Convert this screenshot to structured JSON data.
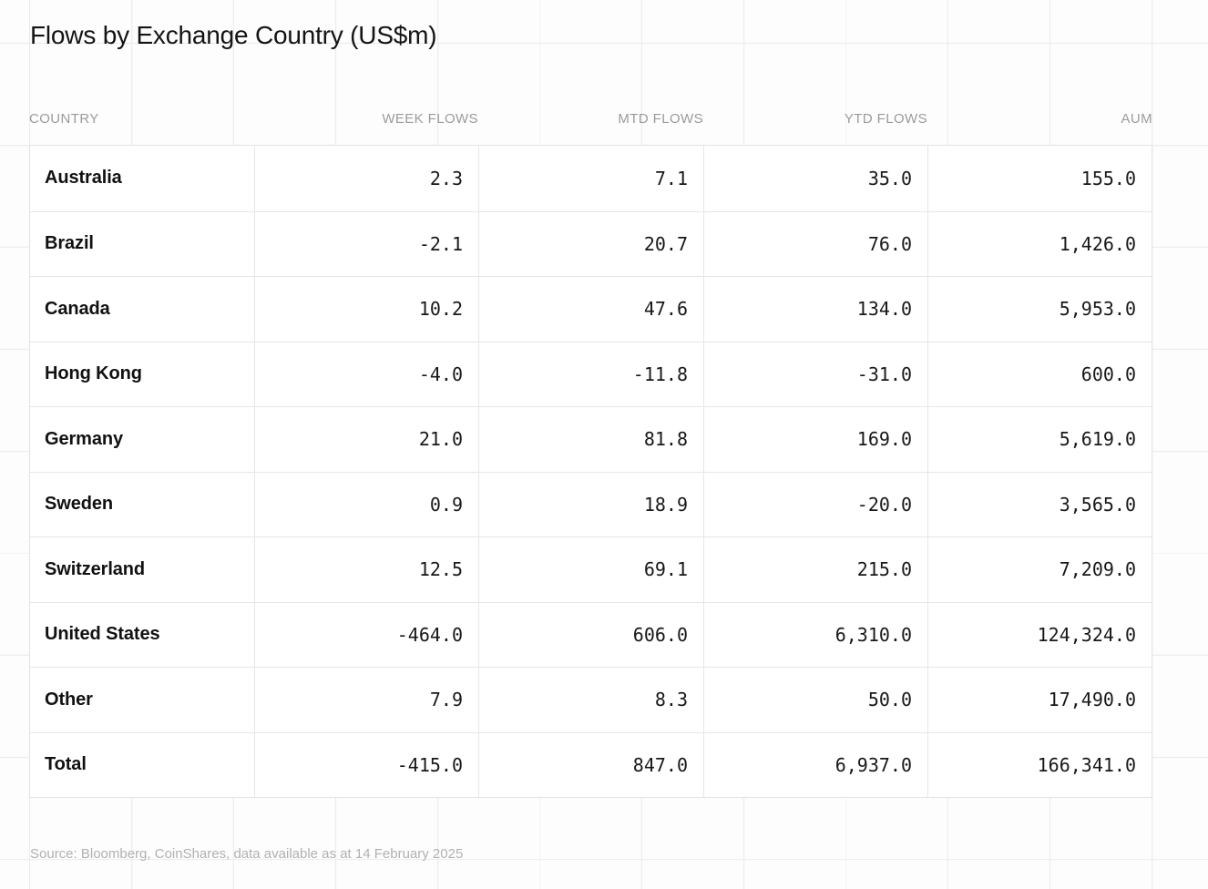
{
  "page": {
    "title": "Flows by Exchange Country (US$m)",
    "source_note": "Source: Bloomberg, CoinShares, data available as at 14 February 2025"
  },
  "colors": {
    "background": "#fdfdfd",
    "grid_line": "#ececec",
    "table_background": "#ffffff",
    "table_border": "#e3e3e3",
    "title_text": "#141414",
    "header_text": "#9b9b9b",
    "body_text": "#181818",
    "source_text": "#b1b1b1"
  },
  "table": {
    "columns": [
      "COUNTRY",
      "WEEK FLOWS",
      "MTD FLOWS",
      "YTD FLOWS",
      "AUM"
    ],
    "rows": [
      {
        "country": "Australia",
        "week": "2.3",
        "mtd": "7.1",
        "ytd": "35.0",
        "aum": "155.0"
      },
      {
        "country": "Brazil",
        "week": "-2.1",
        "mtd": "20.7",
        "ytd": "76.0",
        "aum": "1,426.0"
      },
      {
        "country": "Canada",
        "week": "10.2",
        "mtd": "47.6",
        "ytd": "134.0",
        "aum": "5,953.0"
      },
      {
        "country": "Hong Kong",
        "week": "-4.0",
        "mtd": "-11.8",
        "ytd": "-31.0",
        "aum": "600.0"
      },
      {
        "country": "Germany",
        "week": "21.0",
        "mtd": "81.8",
        "ytd": "169.0",
        "aum": "5,619.0"
      },
      {
        "country": "Sweden",
        "week": "0.9",
        "mtd": "18.9",
        "ytd": "-20.0",
        "aum": "3,565.0"
      },
      {
        "country": "Switzerland",
        "week": "12.5",
        "mtd": "69.1",
        "ytd": "215.0",
        "aum": "7,209.0"
      },
      {
        "country": "United States",
        "week": "-464.0",
        "mtd": "606.0",
        "ytd": "6,310.0",
        "aum": "124,324.0"
      },
      {
        "country": "Other",
        "week": "7.9",
        "mtd": "8.3",
        "ytd": "50.0",
        "aum": "17,490.0"
      },
      {
        "country": "Total",
        "week": "-415.0",
        "mtd": "847.0",
        "ytd": "6,937.0",
        "aum": "166,341.0"
      }
    ]
  },
  "chart_data": {
    "type": "table",
    "title": "Flows by Exchange Country (US$m)",
    "columns": [
      "COUNTRY",
      "WEEK FLOWS",
      "MTD FLOWS",
      "YTD FLOWS",
      "AUM"
    ],
    "rows": [
      {
        "country": "Australia",
        "week_flows": 2.3,
        "mtd_flows": 7.1,
        "ytd_flows": 35.0,
        "aum": 155.0
      },
      {
        "country": "Brazil",
        "week_flows": -2.1,
        "mtd_flows": 20.7,
        "ytd_flows": 76.0,
        "aum": 1426.0
      },
      {
        "country": "Canada",
        "week_flows": 10.2,
        "mtd_flows": 47.6,
        "ytd_flows": 134.0,
        "aum": 5953.0
      },
      {
        "country": "Hong Kong",
        "week_flows": -4.0,
        "mtd_flows": -11.8,
        "ytd_flows": -31.0,
        "aum": 600.0
      },
      {
        "country": "Germany",
        "week_flows": 21.0,
        "mtd_flows": 81.8,
        "ytd_flows": 169.0,
        "aum": 5619.0
      },
      {
        "country": "Sweden",
        "week_flows": 0.9,
        "mtd_flows": 18.9,
        "ytd_flows": -20.0,
        "aum": 3565.0
      },
      {
        "country": "Switzerland",
        "week_flows": 12.5,
        "mtd_flows": 69.1,
        "ytd_flows": 215.0,
        "aum": 7209.0
      },
      {
        "country": "United States",
        "week_flows": -464.0,
        "mtd_flows": 606.0,
        "ytd_flows": 6310.0,
        "aum": 124324.0
      },
      {
        "country": "Other",
        "week_flows": 7.9,
        "mtd_flows": 8.3,
        "ytd_flows": 50.0,
        "aum": 17490.0
      },
      {
        "country": "Total",
        "week_flows": -415.0,
        "mtd_flows": 847.0,
        "ytd_flows": 6937.0,
        "aum": 166341.0
      }
    ],
    "source": "Source: Bloomberg, CoinShares, data available as at 14 February 2025"
  }
}
